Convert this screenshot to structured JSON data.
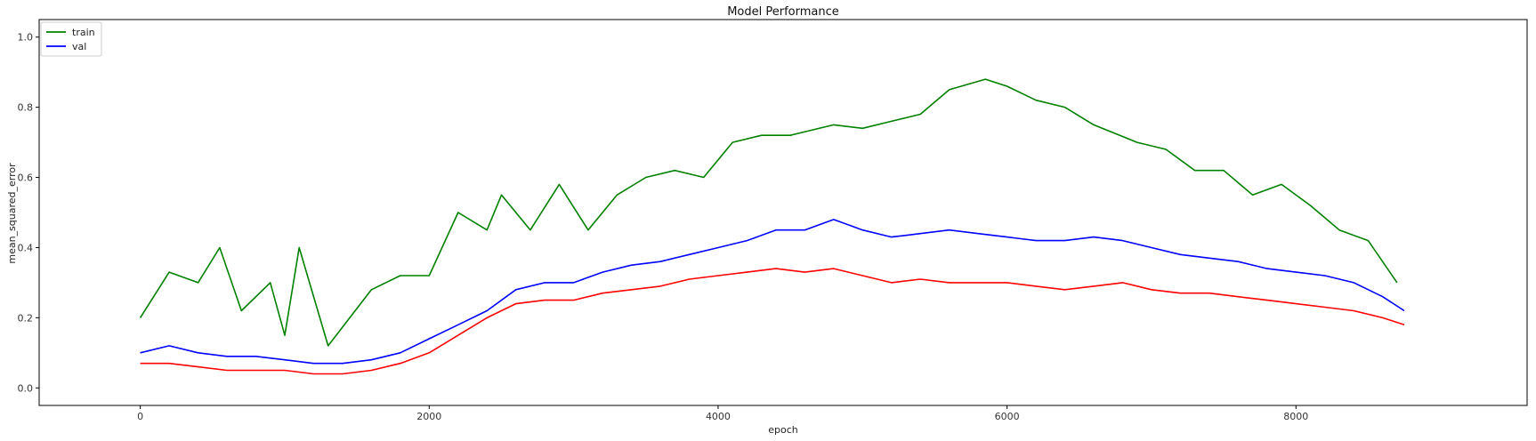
{
  "chart_data": {
    "type": "line",
    "title": "Model Performance",
    "xlabel": "epoch",
    "ylabel": "mean_squared_error",
    "xlim": [
      -700,
      9600
    ],
    "ylim": [
      -0.05,
      1.05
    ],
    "x_ticks": [
      0,
      2000,
      4000,
      6000,
      8000
    ],
    "x_tick_labels": [
      "0",
      "2000",
      "4000",
      "6000",
      "8000"
    ],
    "y_ticks": [
      0.0,
      0.2,
      0.4,
      0.6,
      0.8,
      1.0
    ],
    "y_tick_labels": [
      "0.0",
      "0.2",
      "0.4",
      "0.6",
      "0.8",
      "1.0"
    ],
    "grid": false,
    "legend_position": "top-left",
    "legend": [
      "train",
      "val"
    ],
    "series": [
      {
        "name": "train",
        "color": "#008000",
        "x": [
          0,
          200,
          400,
          550,
          700,
          900,
          1000,
          1100,
          1300,
          1450,
          1600,
          1800,
          2000,
          2200,
          2400,
          2500,
          2700,
          2900,
          3100,
          3300,
          3500,
          3700,
          3900,
          4100,
          4300,
          4500,
          4800,
          5000,
          5200,
          5400,
          5600,
          5850,
          6000,
          6200,
          6400,
          6600,
          6900,
          7100,
          7300,
          7500,
          7700,
          7900,
          8100,
          8300,
          8500,
          8700
        ],
        "y": [
          0.2,
          0.33,
          0.3,
          0.4,
          0.22,
          0.3,
          0.15,
          0.4,
          0.12,
          0.2,
          0.28,
          0.32,
          0.32,
          0.5,
          0.45,
          0.55,
          0.45,
          0.58,
          0.45,
          0.55,
          0.6,
          0.62,
          0.6,
          0.7,
          0.72,
          0.72,
          0.75,
          0.74,
          0.76,
          0.78,
          0.85,
          0.88,
          0.86,
          0.82,
          0.8,
          0.75,
          0.7,
          0.68,
          0.62,
          0.62,
          0.55,
          0.58,
          0.52,
          0.45,
          0.42,
          0.3
        ]
      },
      {
        "name": "val",
        "color": "#0000ff",
        "x": [
          0,
          200,
          400,
          600,
          800,
          1000,
          1200,
          1400,
          1600,
          1800,
          2000,
          2200,
          2400,
          2600,
          2800,
          3000,
          3200,
          3400,
          3600,
          3800,
          4000,
          4200,
          4400,
          4600,
          4800,
          5000,
          5200,
          5400,
          5600,
          5800,
          6000,
          6200,
          6400,
          6600,
          6800,
          7000,
          7200,
          7400,
          7600,
          7800,
          8000,
          8200,
          8400,
          8600,
          8750
        ],
        "y": [
          0.1,
          0.12,
          0.1,
          0.09,
          0.09,
          0.08,
          0.07,
          0.07,
          0.08,
          0.1,
          0.14,
          0.18,
          0.22,
          0.28,
          0.3,
          0.3,
          0.33,
          0.35,
          0.36,
          0.38,
          0.4,
          0.42,
          0.45,
          0.45,
          0.48,
          0.45,
          0.43,
          0.44,
          0.45,
          0.44,
          0.43,
          0.42,
          0.42,
          0.43,
          0.42,
          0.4,
          0.38,
          0.37,
          0.36,
          0.34,
          0.33,
          0.32,
          0.3,
          0.26,
          0.22
        ]
      },
      {
        "color": "#ff0000",
        "x": [
          0,
          200,
          400,
          600,
          800,
          1000,
          1200,
          1400,
          1600,
          1800,
          2000,
          2200,
          2400,
          2600,
          2800,
          3000,
          3200,
          3400,
          3600,
          3800,
          4000,
          4200,
          4400,
          4600,
          4800,
          5000,
          5200,
          5400,
          5600,
          5800,
          6000,
          6200,
          6400,
          6600,
          6800,
          7000,
          7200,
          7400,
          7600,
          7800,
          8000,
          8200,
          8400,
          8600,
          8750
        ],
        "y": [
          0.07,
          0.07,
          0.06,
          0.05,
          0.05,
          0.05,
          0.04,
          0.04,
          0.05,
          0.07,
          0.1,
          0.15,
          0.2,
          0.24,
          0.25,
          0.25,
          0.27,
          0.28,
          0.29,
          0.31,
          0.32,
          0.33,
          0.34,
          0.33,
          0.34,
          0.32,
          0.3,
          0.31,
          0.3,
          0.3,
          0.3,
          0.29,
          0.28,
          0.29,
          0.3,
          0.28,
          0.27,
          0.27,
          0.26,
          0.25,
          0.24,
          0.23,
          0.22,
          0.2,
          0.18
        ]
      }
    ]
  }
}
